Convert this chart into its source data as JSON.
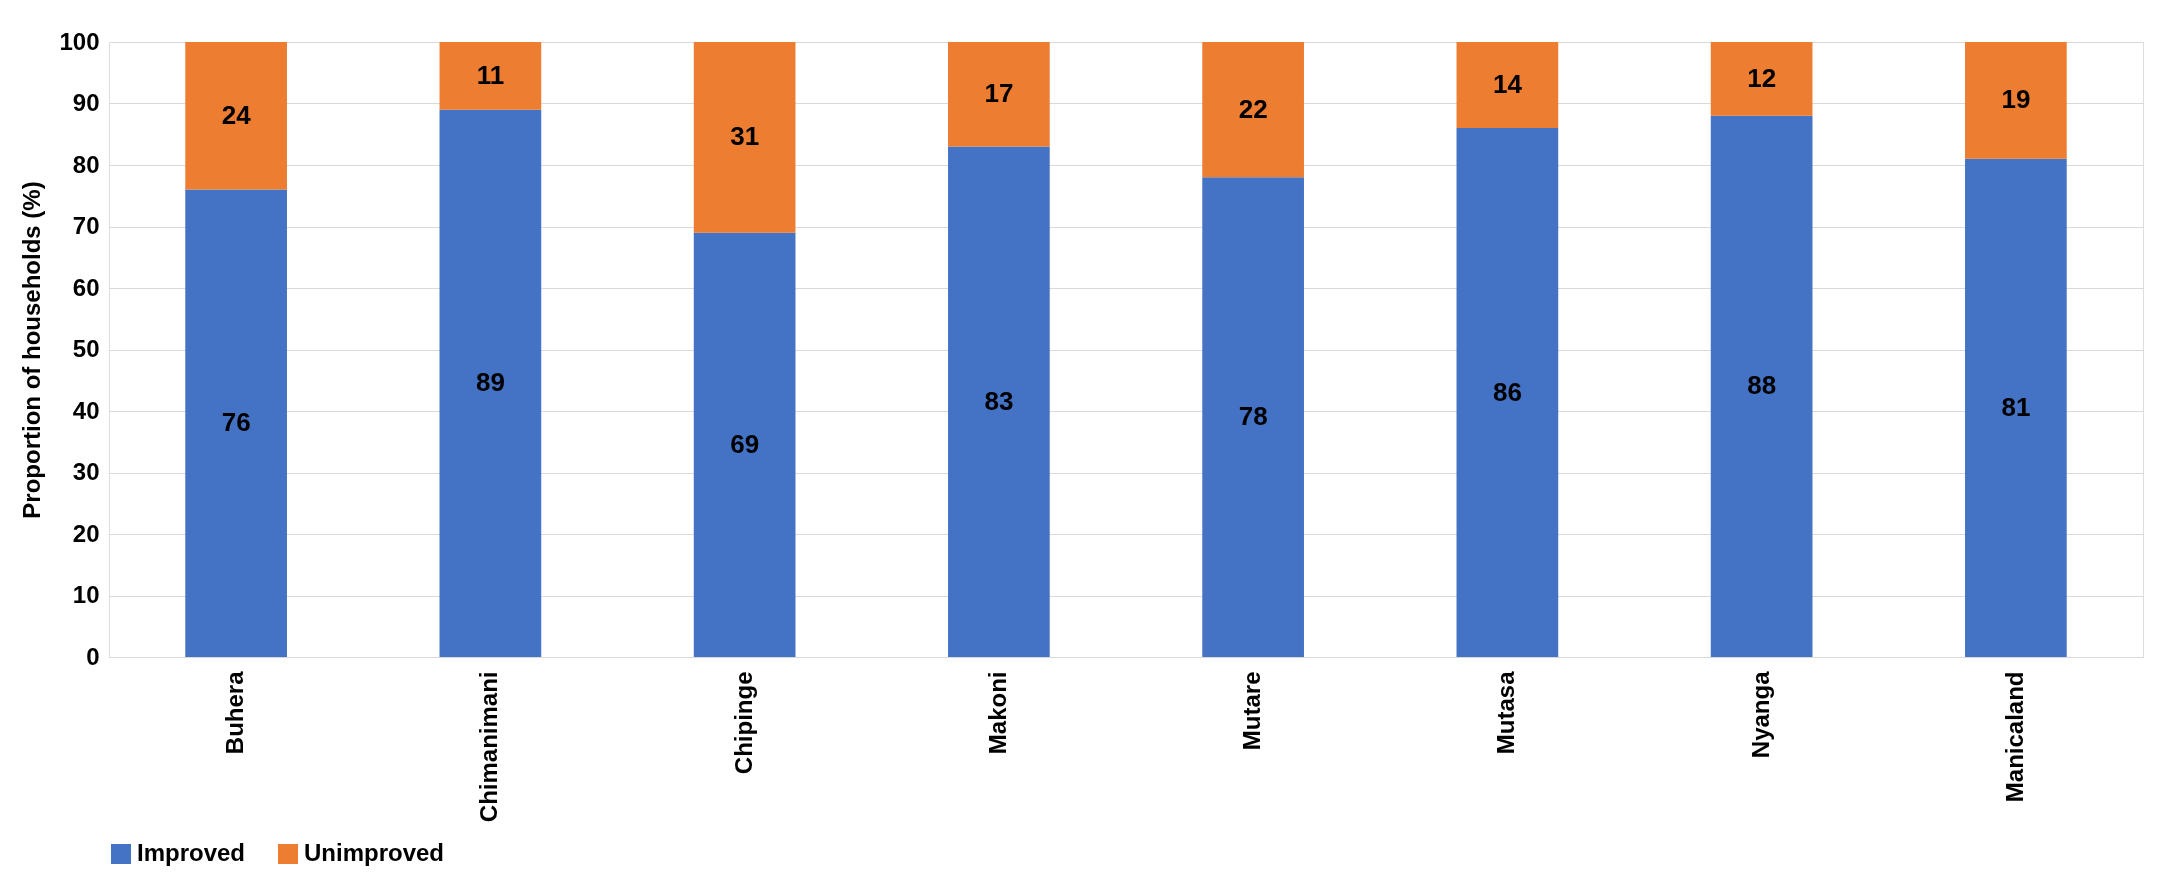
{
  "chart_data": {
    "type": "bar",
    "stacked": true,
    "ylabel": "Proportion of households (%)",
    "categories": [
      "Buhera",
      "Chimanimani",
      "Chipinge",
      "Makoni",
      "Mutare",
      "Mutasa",
      "Nyanga",
      "Manicaland"
    ],
    "series": [
      {
        "name": "Improved",
        "color": "#4472c4",
        "values": [
          76,
          89,
          69,
          83,
          78,
          86,
          88,
          81
        ]
      },
      {
        "name": "Unimproved",
        "color": "#ed7d31",
        "values": [
          24,
          11,
          31,
          17,
          22,
          14,
          12,
          19
        ]
      }
    ],
    "ylim": [
      0,
      100
    ],
    "yticks": [
      0,
      10,
      20,
      30,
      40,
      50,
      60,
      70,
      80,
      90,
      100
    ],
    "grid": "y",
    "legend": "bottom",
    "data_labels": true
  }
}
